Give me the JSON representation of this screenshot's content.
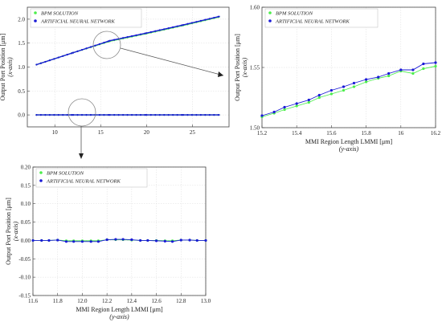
{
  "colors": {
    "bpm": "#4cee4c",
    "ann": "#1a1ad6",
    "axis": "#444444",
    "grid": "#dcdcdc"
  },
  "legend": [
    "BPM SOLUTION",
    "ARTIFICIAL NEURAL NETWORK"
  ],
  "chart_data": [
    {
      "id": "main",
      "type": "line",
      "xlim": [
        7,
        29
      ],
      "ylim": [
        -0.25,
        2.25
      ],
      "xticks": [
        10,
        15,
        20,
        25
      ],
      "yticks": [
        0,
        0.5,
        1,
        1.5,
        2
      ],
      "ytick_labels": [
        "0.0",
        "0.5",
        "1.0",
        "1.5",
        "2.0"
      ],
      "xlabel": "",
      "ylabel": "Output Port Position [μm]",
      "ylabel2": "(x-axis)",
      "grid": true,
      "legend_position": "top-left",
      "series": [
        {
          "name": "BPM SOLUTION",
          "x": [
            8,
            12,
            16,
            20,
            24,
            28
          ],
          "y": [
            1.05,
            1.3,
            1.54,
            1.7,
            1.87,
            2.05
          ]
        },
        {
          "name": "ARTIFICIAL NEURAL NETWORK",
          "x": [
            8,
            12,
            16,
            20,
            24,
            28
          ],
          "y": [
            1.05,
            1.3,
            1.55,
            1.71,
            1.88,
            2.06
          ]
        },
        {
          "name": "BPM SOLUTION",
          "x": [
            8,
            12,
            16,
            20,
            24,
            28
          ],
          "y": [
            0,
            0,
            0,
            0,
            0,
            0
          ]
        },
        {
          "name": "ARTIFICIAL NEURAL NETWORK",
          "x": [
            8,
            12,
            16,
            20,
            24,
            28
          ],
          "y": [
            0,
            0,
            0,
            0,
            0,
            0
          ]
        }
      ]
    },
    {
      "id": "zoom-upper",
      "type": "line",
      "xlim": [
        15.2,
        16.2
      ],
      "ylim": [
        1.5,
        1.6
      ],
      "xticks": [
        15.2,
        15.4,
        15.6,
        15.8,
        16.0,
        16.2
      ],
      "xtick_labels": [
        "15.2",
        "15.4",
        "15.6",
        "15.8",
        "16",
        "16.2"
      ],
      "yticks": [
        1.5,
        1.55,
        1.6
      ],
      "ytick_labels": [
        "1.50",
        "1.55",
        "1.60"
      ],
      "xlabel": "MMI Region Length LMMI [μm]",
      "xlabel2": "(y-axis)",
      "ylabel": "Output Port Position [μm]",
      "ylabel2": "(x-axis)",
      "grid": true,
      "legend_position": "top-left",
      "series": [
        {
          "name": "BPM SOLUTION",
          "x": [
            15.2,
            15.27,
            15.33,
            15.4,
            15.47,
            15.53,
            15.6,
            15.67,
            15.73,
            15.8,
            15.87,
            15.93,
            16.0,
            16.07,
            16.13,
            16.2
          ],
          "y": [
            1.509,
            1.512,
            1.515,
            1.518,
            1.521,
            1.525,
            1.528,
            1.531,
            1.534,
            1.538,
            1.541,
            1.543,
            1.547,
            1.545,
            1.549,
            1.551
          ]
        },
        {
          "name": "ARTIFICIAL NEURAL NETWORK",
          "x": [
            15.2,
            15.27,
            15.33,
            15.4,
            15.47,
            15.53,
            15.6,
            15.67,
            15.73,
            15.8,
            15.87,
            15.93,
            16.0,
            16.07,
            16.13,
            16.2
          ],
          "y": [
            1.51,
            1.513,
            1.517,
            1.52,
            1.523,
            1.527,
            1.531,
            1.534,
            1.537,
            1.54,
            1.542,
            1.545,
            1.548,
            1.548,
            1.553,
            1.554
          ]
        }
      ]
    },
    {
      "id": "zoom-lower",
      "type": "line",
      "xlim": [
        11.6,
        13.0
      ],
      "ylim": [
        -0.15,
        0.2
      ],
      "xticks": [
        11.6,
        11.8,
        12.0,
        12.2,
        12.4,
        12.6,
        12.8,
        13.0
      ],
      "xtick_labels": [
        "11.6",
        "11.8",
        "12.0",
        "12.2",
        "12.4",
        "12.6",
        "12.8",
        "13.0"
      ],
      "yticks": [
        -0.15,
        -0.1,
        -0.05,
        0,
        0.05,
        0.1,
        0.15,
        0.2
      ],
      "ytick_labels": [
        "-0.15",
        "-0.10",
        "-0.05",
        "0.00",
        "0.05",
        "0.10",
        "0.15",
        "0.20"
      ],
      "xlabel": "MMI Region Length LMMI [μm]",
      "xlabel2": "(y-axis)",
      "ylabel": "Output Port Position [μm]",
      "ylabel2": "(x-axis)",
      "grid": true,
      "legend_position": "top-left",
      "series": [
        {
          "name": "BPM SOLUTION",
          "x": [
            11.6,
            11.67,
            11.73,
            11.8,
            11.87,
            11.93,
            12.0,
            12.07,
            12.13,
            12.2,
            12.27,
            12.33,
            12.4,
            12.47,
            12.53,
            12.6,
            12.67,
            12.73,
            12.8,
            12.87,
            12.93,
            13.0
          ],
          "y": [
            0,
            0,
            0,
            0.001,
            -0.001,
            -0.001,
            -0.001,
            -0.001,
            -0.001,
            0.002,
            0.002,
            0.002,
            0.001,
            0,
            0,
            0,
            -0.001,
            -0.001,
            0.001,
            0.001,
            0,
            0
          ]
        },
        {
          "name": "ARTIFICIAL NEURAL NETWORK",
          "x": [
            11.6,
            11.67,
            11.73,
            11.8,
            11.87,
            11.93,
            12.0,
            12.07,
            12.13,
            12.2,
            12.27,
            12.33,
            12.4,
            12.47,
            12.53,
            12.6,
            12.67,
            12.73,
            12.8,
            12.87,
            12.93,
            13.0
          ],
          "y": [
            0,
            0,
            0,
            0.001,
            -0.003,
            -0.003,
            -0.003,
            -0.003,
            -0.003,
            0.002,
            0.003,
            0.003,
            0.002,
            0,
            0,
            -0.001,
            -0.002,
            -0.003,
            0.001,
            0.001,
            0,
            0
          ]
        }
      ]
    }
  ]
}
